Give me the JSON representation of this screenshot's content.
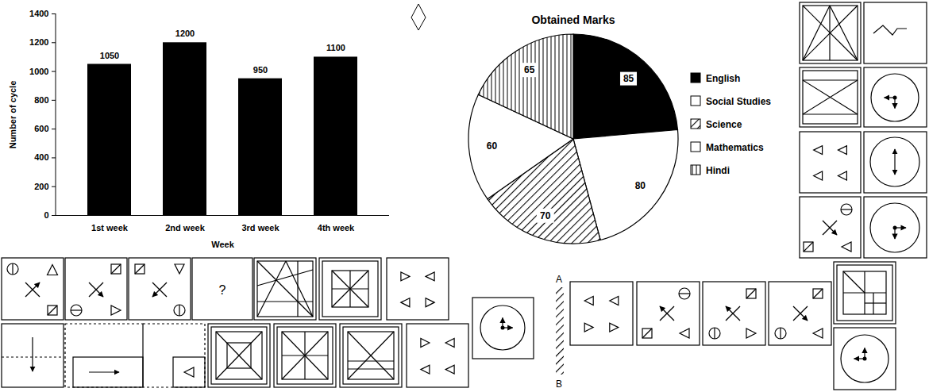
{
  "chart_data": [
    {
      "type": "bar",
      "categories": [
        "1st week",
        "2nd week",
        "3rd week",
        "4th week"
      ],
      "values": [
        1050,
        1200,
        950,
        1100
      ],
      "color": "#000000",
      "x_label": "Week",
      "y_label": "Number of cycle",
      "ylim": [
        0,
        1400
      ],
      "yticks": [
        0,
        200,
        400,
        600,
        800,
        1000,
        1200,
        1400
      ],
      "grid": false,
      "data_labels": true
    },
    {
      "type": "pie",
      "title": "Obtained Marks",
      "categories": [
        "English",
        "Social Studies",
        "Science",
        "Mathematics",
        "Hindi"
      ],
      "values": [
        85,
        80,
        70,
        60,
        65
      ],
      "colors": [
        "#000000",
        "#ffffff",
        "#ffffff",
        "#ffffff",
        "#ffffff"
      ],
      "data_labels": true,
      "legend": "right"
    }
  ],
  "figure_texts": {
    "question": "?",
    "scale_ends": [
      "A",
      "B"
    ]
  }
}
